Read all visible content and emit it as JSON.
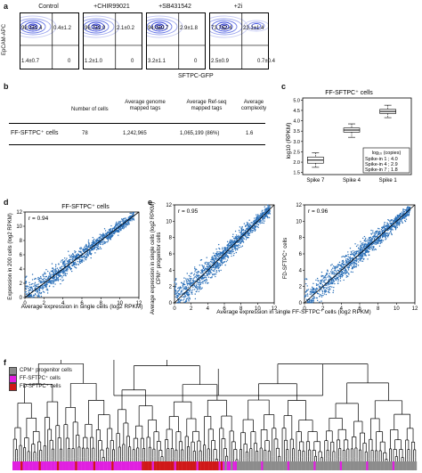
{
  "panels": {
    "a": "a",
    "b": "b",
    "c": "c",
    "d": "d",
    "e": "e",
    "f": "f"
  },
  "panel_a": {
    "y_label": "EpCAM-APC",
    "x_label": "SFTPC-GFP",
    "plots": [
      {
        "title": "Control",
        "q_tl": "98.1±1.4",
        "q_tr": "0.4±1.2",
        "q_bl": "1.4±0.7",
        "q_br": "0"
      },
      {
        "title": "+CHIR99021",
        "q_tl": "96.7±1.0",
        "q_tr": "2.1±0.2",
        "q_bl": "1.2±1.0",
        "q_br": "0"
      },
      {
        "title": "+SB431542",
        "q_tl": "94.0±0.7",
        "q_tr": "2.9±1.8",
        "q_bl": "3.2±1.1",
        "q_br": "0"
      },
      {
        "title": "+2i",
        "q_tl": "73.7±2.4",
        "q_tr": "23.1±1.4",
        "q_bl": "2.5±0.9",
        "q_br": "0.7±0.4"
      }
    ]
  },
  "panel_b": {
    "headers": [
      "Number of cells",
      "Average genome mapped tags",
      "Average Ref-seq mapped tags",
      "Average complexity"
    ],
    "row_label": "FF-SFTPC⁺ cells",
    "row": [
      "78",
      "1,242,965",
      "1,065,199 (86%)",
      "1.6"
    ]
  },
  "panel_c": {
    "title": "FF-SFTPC⁺ cells",
    "ylabel": "log10 (RPKM)",
    "legend_title": "log₁₀ (copies)",
    "legend_items": [
      "Spike-in 1 ; 4.0",
      "Spike-in 4 ; 2.9",
      "Spike-in 7 ; 1.8"
    ]
  },
  "panel_d": {
    "title": "FF-SFTPC⁺ cells",
    "r": "r = 0.94",
    "xlabel": "Average expression in single cells (log2 RPKM)",
    "ylabel": "Expression in 200 cells (log2 RPKM)"
  },
  "panel_e": {
    "r1": "r = 0.95",
    "r2": "r = 0.96",
    "ylabel1": "Average expression in single cells (log2 RPKM)",
    "ylabel1b": "CPM⁺ progenitor cells",
    "ylabel2": "FD-SFTPC⁺ cells",
    "xlabel": "Average expression in single FF-SFTPC⁺ cells (log2 RPKM)"
  },
  "panel_f": {
    "legend": [
      {
        "label": "CPM⁺ progenitor cells",
        "color": "#8c8c8c"
      },
      {
        "label": "FF-SFTPC⁺ cells",
        "color": "#e020e0"
      },
      {
        "label": "FD-SFTPC⁺ cells",
        "color": "#d01818"
      }
    ]
  },
  "chart_data": [
    {
      "type": "box",
      "title": "FF-SFTPC⁺ cells",
      "categories": [
        "Spike 7",
        "Spike 4",
        "Spike 1"
      ],
      "ylabel": "log10 (RPKM)",
      "ylim": [
        1.4,
        5.1
      ],
      "yticks": [
        1.5,
        2.0,
        2.5,
        3.0,
        3.5,
        4.0,
        4.5,
        5.0
      ],
      "boxes": [
        {
          "name": "Spike 7",
          "min": 1.75,
          "q1": 1.95,
          "median": 2.1,
          "q3": 2.25,
          "max": 2.45
        },
        {
          "name": "Spike 4",
          "min": 3.2,
          "q1": 3.45,
          "median": 3.55,
          "q3": 3.65,
          "max": 3.85
        },
        {
          "name": "Spike 1",
          "min": 4.15,
          "q1": 4.35,
          "median": 4.45,
          "q3": 4.55,
          "max": 4.75
        }
      ]
    },
    {
      "type": "scatter",
      "panel": "d",
      "xticks": [
        0,
        2,
        4,
        6,
        8,
        10,
        12
      ],
      "yticks": [
        0,
        2,
        4,
        6,
        8,
        10,
        12
      ],
      "xlim": [
        0,
        12
      ],
      "ylim": [
        0,
        12
      ],
      "r": 0.94
    },
    {
      "type": "scatter",
      "panel": "e-left",
      "xticks": [
        0,
        2,
        4,
        6,
        8,
        10,
        12
      ],
      "yticks": [
        0,
        2,
        4,
        6,
        8,
        10,
        12
      ],
      "xlim": [
        0,
        12
      ],
      "ylim": [
        0,
        12
      ],
      "r": 0.95
    },
    {
      "type": "scatter",
      "panel": "e-right",
      "xticks": [
        0,
        2,
        4,
        6,
        8,
        10,
        12
      ],
      "yticks": [
        0,
        2,
        4,
        6,
        8,
        10,
        12
      ],
      "xlim": [
        0,
        12
      ],
      "ylim": [
        0,
        12
      ],
      "r": 0.96
    }
  ]
}
